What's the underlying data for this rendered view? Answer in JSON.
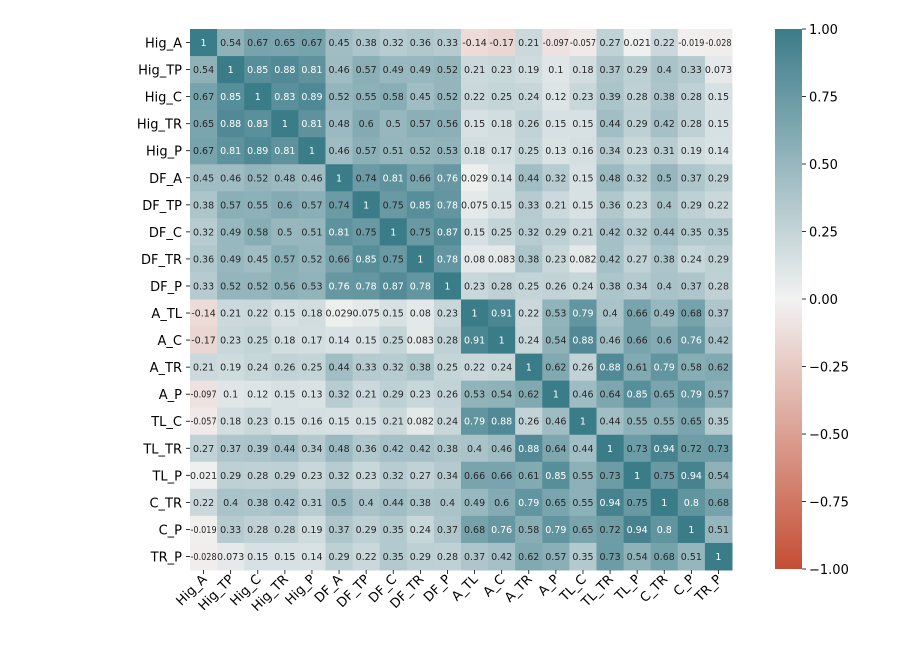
{
  "chart_data": {
    "type": "heatmap",
    "labels": [
      "Hig_A",
      "Hig_TP",
      "Hig_C",
      "Hig_TR",
      "Hig_P",
      "DF_A",
      "DF_TP",
      "DF_C",
      "DF_TR",
      "DF_P",
      "A_TL",
      "A_C",
      "A_TR",
      "A_P",
      "TL_C",
      "TL_TR",
      "TL_P",
      "C_TR",
      "C_P",
      "TR_P"
    ],
    "matrix": [
      [
        1,
        0.54,
        0.67,
        0.65,
        0.67,
        0.45,
        0.38,
        0.32,
        0.36,
        0.33,
        -0.14,
        -0.17,
        0.21,
        -0.097,
        -0.057,
        0.27,
        0.021,
        0.22,
        -0.019,
        -0.028
      ],
      [
        0.54,
        1,
        0.85,
        0.88,
        0.81,
        0.46,
        0.57,
        0.49,
        0.49,
        0.52,
        0.21,
        0.23,
        0.19,
        0.1,
        0.18,
        0.37,
        0.29,
        0.4,
        0.33,
        0.073
      ],
      [
        0.67,
        0.85,
        1,
        0.83,
        0.89,
        0.52,
        0.55,
        0.58,
        0.45,
        0.52,
        0.22,
        0.25,
        0.24,
        0.12,
        0.23,
        0.39,
        0.28,
        0.38,
        0.28,
        0.15
      ],
      [
        0.65,
        0.88,
        0.83,
        1,
        0.81,
        0.48,
        0.6,
        0.5,
        0.57,
        0.56,
        0.15,
        0.18,
        0.26,
        0.15,
        0.15,
        0.44,
        0.29,
        0.42,
        0.28,
        0.15
      ],
      [
        0.67,
        0.81,
        0.89,
        0.81,
        1,
        0.46,
        0.57,
        0.51,
        0.52,
        0.53,
        0.18,
        0.17,
        0.25,
        0.13,
        0.16,
        0.34,
        0.23,
        0.31,
        0.19,
        0.14
      ],
      [
        0.45,
        0.46,
        0.52,
        0.48,
        0.46,
        1,
        0.74,
        0.81,
        0.66,
        0.76,
        0.029,
        0.14,
        0.44,
        0.32,
        0.15,
        0.48,
        0.32,
        0.5,
        0.37,
        0.29
      ],
      [
        0.38,
        0.57,
        0.55,
        0.6,
        0.57,
        0.74,
        1,
        0.75,
        0.85,
        0.78,
        0.075,
        0.15,
        0.33,
        0.21,
        0.15,
        0.36,
        0.23,
        0.4,
        0.29,
        0.22
      ],
      [
        0.32,
        0.49,
        0.58,
        0.5,
        0.51,
        0.81,
        0.75,
        1,
        0.75,
        0.87,
        0.15,
        0.25,
        0.32,
        0.29,
        0.21,
        0.42,
        0.32,
        0.44,
        0.35,
        0.35
      ],
      [
        0.36,
        0.49,
        0.45,
        0.57,
        0.52,
        0.66,
        0.85,
        0.75,
        1,
        0.78,
        0.08,
        0.083,
        0.38,
        0.23,
        0.082,
        0.42,
        0.27,
        0.38,
        0.24,
        0.29
      ],
      [
        0.33,
        0.52,
        0.52,
        0.56,
        0.53,
        0.76,
        0.78,
        0.87,
        0.78,
        1,
        0.23,
        0.28,
        0.25,
        0.26,
        0.24,
        0.38,
        0.34,
        0.4,
        0.37,
        0.28
      ],
      [
        -0.14,
        0.21,
        0.22,
        0.15,
        0.18,
        0.029,
        0.075,
        0.15,
        0.08,
        0.23,
        1,
        0.91,
        0.22,
        0.53,
        0.79,
        0.4,
        0.66,
        0.49,
        0.68,
        0.37
      ],
      [
        -0.17,
        0.23,
        0.25,
        0.18,
        0.17,
        0.14,
        0.15,
        0.25,
        0.083,
        0.28,
        0.91,
        1,
        0.24,
        0.54,
        0.88,
        0.46,
        0.66,
        0.6,
        0.76,
        0.42
      ],
      [
        0.21,
        0.19,
        0.24,
        0.26,
        0.25,
        0.44,
        0.33,
        0.32,
        0.38,
        0.25,
        0.22,
        0.24,
        1,
        0.62,
        0.26,
        0.88,
        0.61,
        0.79,
        0.58,
        0.62
      ],
      [
        -0.097,
        0.1,
        0.12,
        0.15,
        0.13,
        0.32,
        0.21,
        0.29,
        0.23,
        0.26,
        0.53,
        0.54,
        0.62,
        1,
        0.46,
        0.64,
        0.85,
        0.65,
        0.79,
        0.57
      ],
      [
        -0.057,
        0.18,
        0.23,
        0.15,
        0.16,
        0.15,
        0.15,
        0.21,
        0.082,
        0.24,
        0.79,
        0.88,
        0.26,
        0.46,
        1,
        0.44,
        0.55,
        0.55,
        0.65,
        0.35
      ],
      [
        0.27,
        0.37,
        0.39,
        0.44,
        0.34,
        0.48,
        0.36,
        0.42,
        0.42,
        0.38,
        0.4,
        0.46,
        0.88,
        0.64,
        0.44,
        1,
        0.73,
        0.94,
        0.72,
        0.73
      ],
      [
        0.021,
        0.29,
        0.28,
        0.29,
        0.23,
        0.32,
        0.23,
        0.32,
        0.27,
        0.34,
        0.66,
        0.66,
        0.61,
        0.85,
        0.55,
        0.73,
        1,
        0.75,
        0.94,
        0.54
      ],
      [
        0.22,
        0.4,
        0.38,
        0.42,
        0.31,
        0.5,
        0.4,
        0.44,
        0.38,
        0.4,
        0.49,
        0.6,
        0.79,
        0.65,
        0.55,
        0.94,
        0.75,
        1,
        0.8,
        0.68
      ],
      [
        -0.019,
        0.33,
        0.28,
        0.28,
        0.19,
        0.37,
        0.29,
        0.35,
        0.24,
        0.37,
        0.68,
        0.76,
        0.58,
        0.79,
        0.65,
        0.72,
        0.94,
        0.8,
        1,
        0.51
      ],
      [
        -0.028,
        0.073,
        0.15,
        0.15,
        0.14,
        0.29,
        0.22,
        0.35,
        0.29,
        0.28,
        0.37,
        0.42,
        0.62,
        0.57,
        0.35,
        0.73,
        0.54,
        0.68,
        0.51,
        1
      ]
    ],
    "vmin": -1.0,
    "vmax": 1.0,
    "colorbar": {
      "ticks": [
        1.0,
        0.75,
        0.5,
        0.25,
        0.0,
        -0.25,
        -0.5,
        -0.75,
        -1.0
      ],
      "tick_labels": [
        "1.00",
        "0.75",
        "0.50",
        "0.25",
        "0.00",
        "−0.25",
        "−0.50",
        "−0.75",
        "−1.00"
      ]
    },
    "colors": {
      "negative_end": "#c44e34",
      "center": "#f2f2f2",
      "positive_end": "#3b7c89"
    },
    "annotations": true,
    "title": "",
    "xlabel": "",
    "ylabel": "",
    "grid": false,
    "legend": "colorbar-right"
  }
}
